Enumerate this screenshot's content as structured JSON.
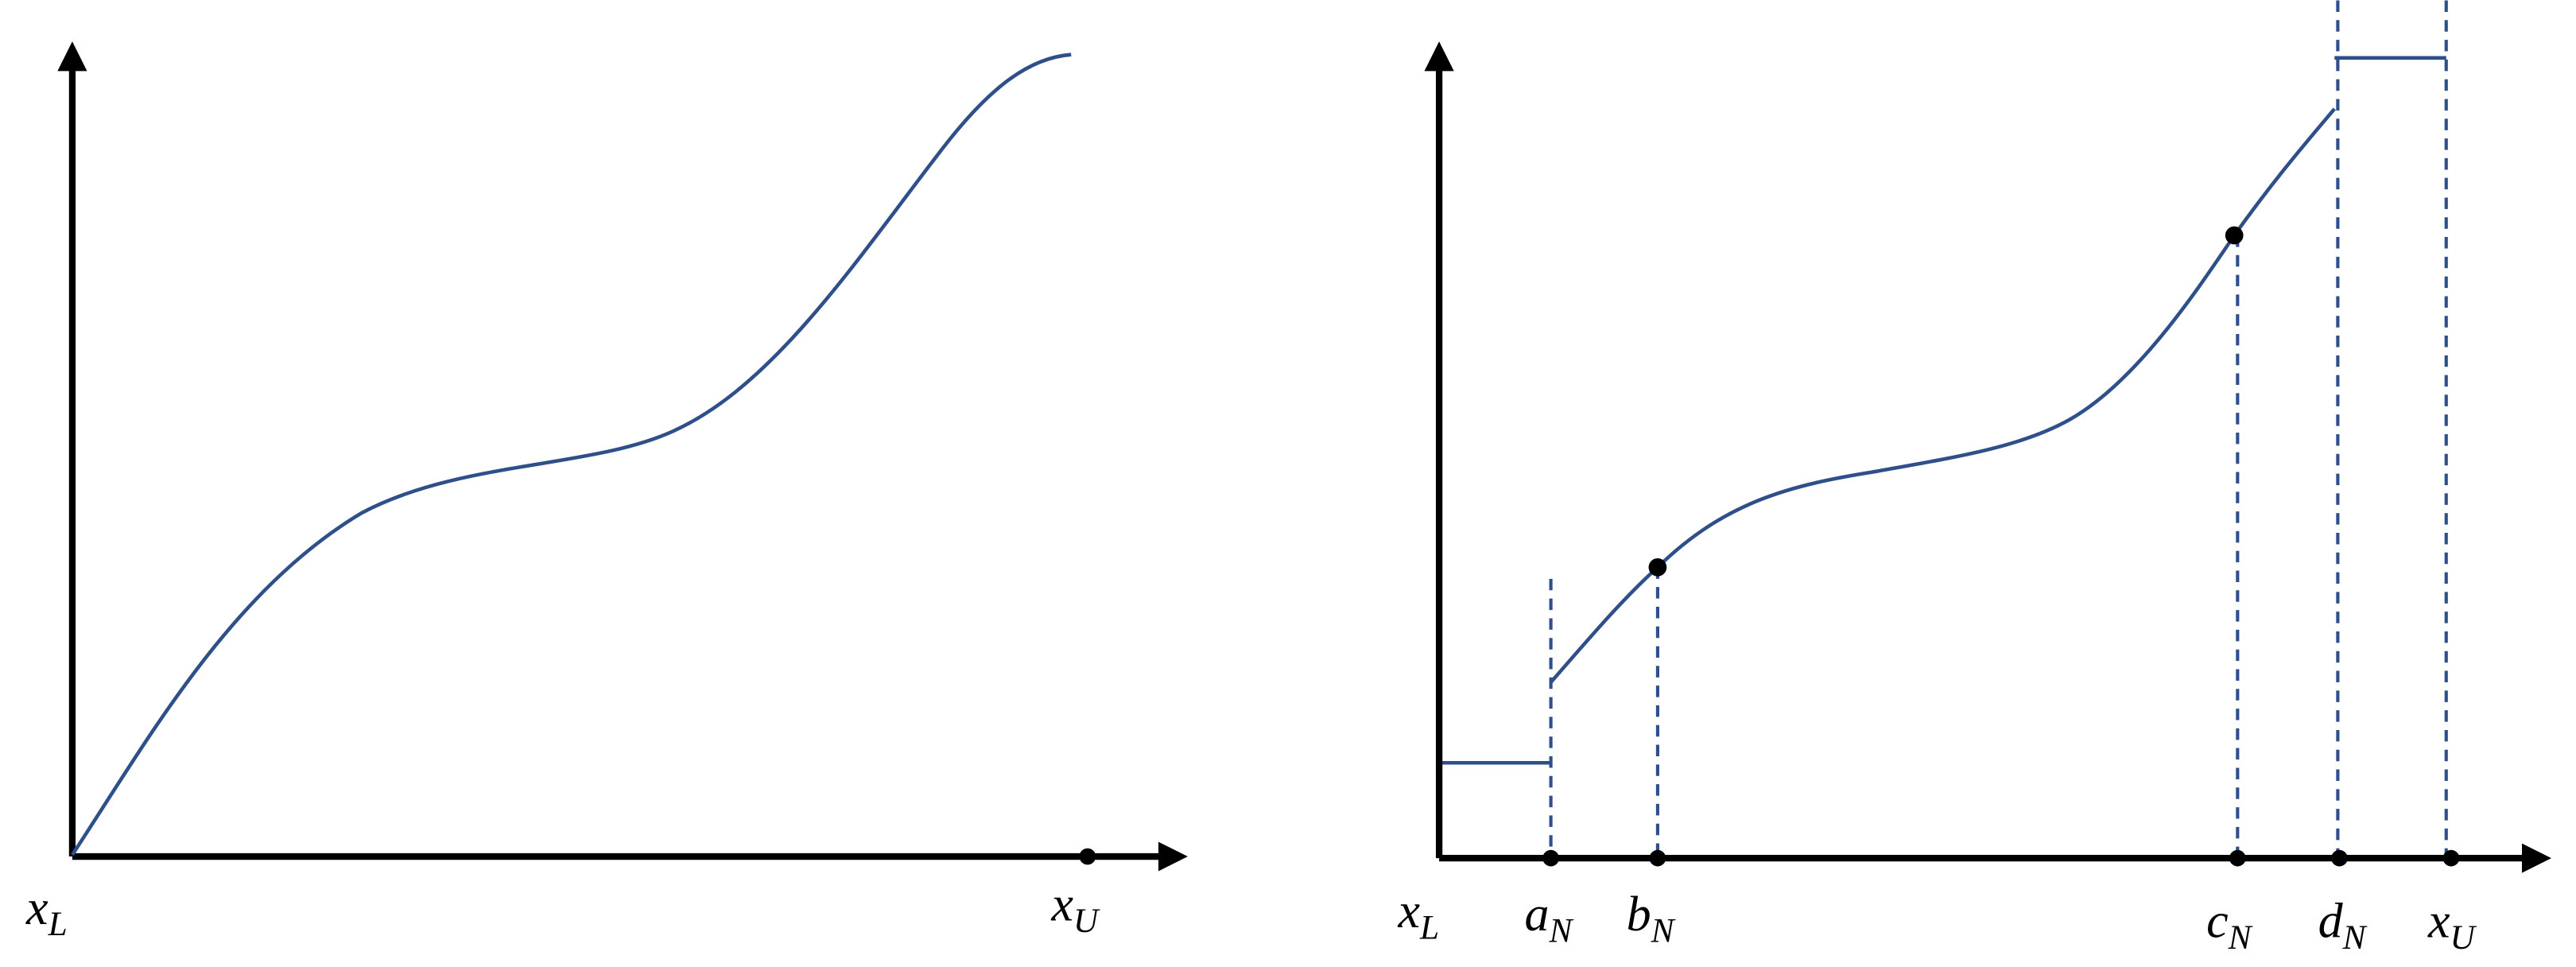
{
  "panels": [
    {
      "labels": [
        {
          "symbol": "x",
          "subscript": "L"
        },
        {
          "symbol": "x",
          "subscript": "U"
        }
      ]
    },
    {
      "labels": [
        {
          "symbol": "x",
          "subscript": "L"
        },
        {
          "symbol": "a",
          "subscript": "N"
        },
        {
          "symbol": "b",
          "subscript": "N"
        },
        {
          "symbol": "c",
          "subscript": "N"
        },
        {
          "symbol": "d",
          "subscript": "N"
        },
        {
          "symbol": "x",
          "subscript": "U"
        }
      ]
    }
  ]
}
